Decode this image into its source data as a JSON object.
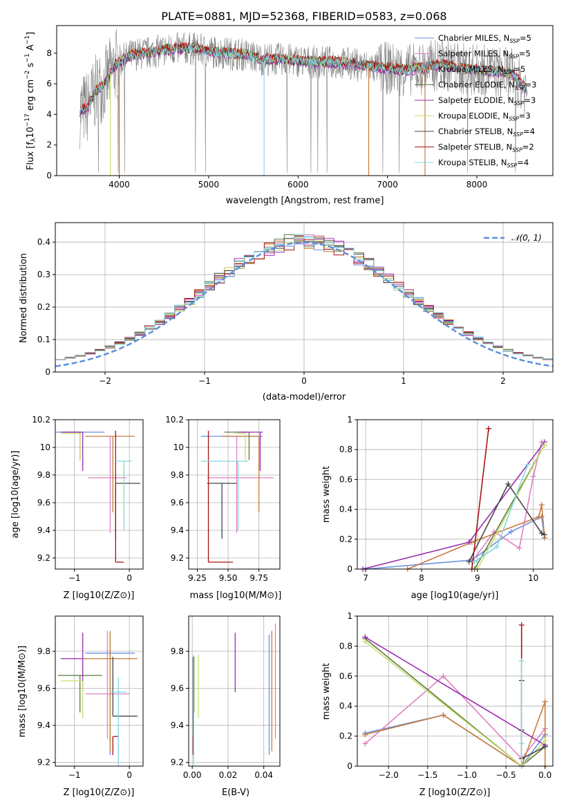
{
  "figure_title": "PLATE=0881, MJD=52368, FIBERID=0583, z=0.068",
  "colors": {
    "chabrier_miles": "#6b8fe0",
    "salpeter_miles": "#e07fc0",
    "kroupa_miles": "#c87a3a",
    "chabrier_elodie": "#5a7a3a",
    "salpeter_elodie": "#9a2ab0",
    "kroupa_elodie": "#c8e070",
    "chabrier_stelib": "#444444",
    "salpeter_stelib": "#aa1111",
    "kroupa_stelib": "#80d8e0",
    "data": "#808080",
    "normal": "#5b8fd9"
  },
  "chart_data": [
    {
      "type": "line",
      "id": "spectrum",
      "xlabel": "wavelength [Angstrom, rest frame]",
      "ylabel": "Flux [f_λ 10^-17 erg cm^-2 s^-1 A^-1]",
      "xlim": [
        3300,
        8850
      ],
      "ylim": [
        0,
        9.8
      ],
      "xticks": [
        4000,
        5000,
        6000,
        7000,
        8000
      ],
      "yticks": [
        0,
        2,
        4,
        6,
        8
      ],
      "legend_position": "top-right",
      "legend": [
        {
          "label": "Chabrier MILES, N_SSP=5",
          "color": "#6b8fe0"
        },
        {
          "label": "Salpeter MILES, N_SSP=5",
          "color": "#e07fc0"
        },
        {
          "label": "Kroupa MILES, N_SSP=5",
          "color": "#c87a3a"
        },
        {
          "label": "Chabrier ELODIE, N_SSP=3",
          "color": "#5a7a3a"
        },
        {
          "label": "Salpeter ELODIE, N_SSP=3",
          "color": "#9a2ab0"
        },
        {
          "label": "Kroupa ELODIE, N_SSP=3",
          "color": "#c8e070"
        },
        {
          "label": "Chabrier STELIB, N_SSP=4",
          "color": "#444444"
        },
        {
          "label": "Salpeter STELIB, N_SSP=2",
          "color": "#aa1111"
        },
        {
          "label": "Kroupa STELIB, N_SSP=4",
          "color": "#80d8e0"
        }
      ],
      "continuum": {
        "x": [
          3550,
          3650,
          3750,
          3850,
          3950,
          4050,
          4150,
          4300,
          4500,
          4700,
          4850,
          5000,
          5200,
          5400,
          5600,
          5800,
          6000,
          6200,
          6400,
          6600,
          6800,
          7000,
          7200,
          7400,
          7600,
          7800,
          8000,
          8200,
          8400,
          8550
        ],
        "y": [
          4.2,
          4.5,
          5.6,
          6.1,
          7.2,
          7.6,
          7.9,
          8.0,
          8.2,
          8.3,
          8.3,
          8.1,
          8.0,
          7.9,
          7.6,
          7.6,
          7.5,
          7.4,
          7.4,
          7.3,
          7.1,
          7.0,
          6.9,
          7.0,
          7.3,
          7.0,
          6.9,
          6.8,
          6.6,
          5.6
        ]
      }
    },
    {
      "type": "line",
      "id": "residuals",
      "xlabel": "(data-model)/error",
      "ylabel": "Normed distribution",
      "xlim": [
        -2.5,
        2.5
      ],
      "ylim": [
        0,
        0.46
      ],
      "xticks": [
        -2,
        -1,
        0,
        1,
        2
      ],
      "yticks": [
        0.0,
        0.1,
        0.2,
        0.3,
        0.4
      ],
      "legend_position": "top-right",
      "normal_label": "𝒩(0, 1)",
      "bin_width": 0.1,
      "bin_start": -2.5
    },
    {
      "type": "scatter",
      "id": "age_vs_Z",
      "xlabel": "Z [log10(Z/Z⊙)]",
      "ylabel": "age  [log10(age/yr)]",
      "xlim": [
        -1.35,
        0.25
      ],
      "ylim": [
        9.12,
        10.2
      ],
      "xticks": [
        -1,
        0
      ],
      "yticks": [
        9.2,
        9.4,
        9.6,
        9.8,
        10.0,
        10.2
      ],
      "points": [
        {
          "model": "chabrier_miles",
          "x": -0.45,
          "xerr": [
            0.9,
            0.0
          ],
          "y": 10.11,
          "yerr": [
            0.0,
            0.0
          ]
        },
        {
          "model": "salpeter_miles",
          "x": -0.35,
          "xerr": [
            0.4,
            0.3
          ],
          "y": 9.78,
          "yerr": [
            0.4,
            0.3
          ]
        },
        {
          "model": "kroupa_miles",
          "x": -0.3,
          "xerr": [
            0.5,
            0.4
          ],
          "y": 10.08,
          "yerr": [
            0.55,
            0.0
          ]
        },
        {
          "model": "chabrier_elodie",
          "x": -0.9,
          "xerr": [
            0.3,
            0.0
          ],
          "y": 10.11,
          "yerr": [
            0.2,
            0.0
          ]
        },
        {
          "model": "salpeter_elodie",
          "x": -0.85,
          "xerr": [
            0.4,
            0.0
          ],
          "y": 10.11,
          "yerr": [
            0.28,
            0.0
          ]
        },
        {
          "model": "kroupa_elodie",
          "x": -0.9,
          "xerr": [
            0.35,
            0.0
          ],
          "y": 10.1,
          "yerr": [
            0.2,
            0.0
          ]
        },
        {
          "model": "chabrier_stelib",
          "x": -0.25,
          "xerr": [
            0.0,
            0.45
          ],
          "y": 9.74,
          "yerr": [
            0.4,
            0.0
          ]
        },
        {
          "model": "salpeter_stelib",
          "x": -0.25,
          "xerr": [
            0.0,
            0.15
          ],
          "y": 9.17,
          "yerr": [
            0.0,
            0.95
          ]
        },
        {
          "model": "kroupa_stelib",
          "x": -0.1,
          "xerr": [
            0.15,
            0.15
          ],
          "y": 9.9,
          "yerr": [
            0.5,
            0.0
          ]
        }
      ]
    },
    {
      "type": "scatter",
      "id": "age_vs_mass",
      "xlabel": "mass [log10(M/M⊙)]",
      "ylabel": "",
      "xlim": [
        9.18,
        9.92
      ],
      "ylim": [
        9.12,
        10.2
      ],
      "xticks": [
        9.25,
        9.5,
        9.75
      ],
      "xtick_labels": [
        "9.25",
        "9.50",
        "9.75"
      ],
      "yticks": [
        9.2,
        9.4,
        9.6,
        9.8,
        10.0,
        10.2
      ],
      "points": [
        {
          "model": "chabrier_miles",
          "x": 9.58,
          "xerr": [
            0.3,
            0.2
          ],
          "y": 10.08,
          "yerr": [
            0.0,
            0.0
          ]
        },
        {
          "model": "salpeter_miles",
          "x": 9.57,
          "xerr": [
            0.24,
            0.3
          ],
          "y": 9.78,
          "yerr": [
            0.4,
            0.3
          ]
        },
        {
          "model": "kroupa_miles",
          "x": 9.75,
          "xerr": [
            0.3,
            0.0
          ],
          "y": 10.08,
          "yerr": [
            0.55,
            0.0
          ]
        },
        {
          "model": "chabrier_elodie",
          "x": 9.67,
          "xerr": [
            0.2,
            0.0
          ],
          "y": 10.11,
          "yerr": [
            0.2,
            0.0
          ]
        },
        {
          "model": "salpeter_elodie",
          "x": 9.76,
          "xerr": [
            0.18,
            0.02
          ],
          "y": 10.11,
          "yerr": [
            0.28,
            0.0
          ]
        },
        {
          "model": "kroupa_elodie",
          "x": 9.64,
          "xerr": [
            0.08,
            0.0
          ],
          "y": 10.1,
          "yerr": [
            0.2,
            0.0
          ]
        },
        {
          "model": "chabrier_stelib",
          "x": 9.45,
          "xerr": [
            0.12,
            0.12
          ],
          "y": 9.74,
          "yerr": [
            0.4,
            0.0
          ]
        },
        {
          "model": "salpeter_stelib",
          "x": 9.34,
          "xerr": [
            0.0,
            0.2
          ],
          "y": 9.17,
          "yerr": [
            0.0,
            0.95
          ]
        },
        {
          "model": "kroupa_stelib",
          "x": 9.58,
          "xerr": [
            0.3,
            0.08
          ],
          "y": 9.9,
          "yerr": [
            0.5,
            0.0
          ]
        }
      ]
    },
    {
      "type": "line",
      "id": "mass_weight_vs_age",
      "xlabel": "age  [log10(age/yr)]",
      "ylabel": "mass weight",
      "xlim": [
        6.85,
        10.35
      ],
      "ylim": [
        0,
        1.0
      ],
      "xticks": [
        7,
        8,
        9,
        10
      ],
      "yticks": [
        0.0,
        0.2,
        0.4,
        0.6,
        0.8,
        1.0
      ],
      "series": [
        {
          "model": "chabrier_miles",
          "x": [
            7.0,
            8.9,
            9.6,
            10.15,
            10.2
          ],
          "y": [
            0.0,
            0.06,
            0.25,
            0.35,
            0.21
          ]
        },
        {
          "model": "salpeter_miles",
          "x": [
            8.9,
            9.3,
            9.75,
            10.0,
            10.15
          ],
          "y": [
            0.05,
            0.25,
            0.14,
            0.62,
            0.85
          ]
        },
        {
          "model": "kroupa_miles",
          "x": [
            7.75,
            8.9,
            10.1,
            10.15,
            10.2
          ],
          "y": [
            0.0,
            0.18,
            0.35,
            0.43,
            0.21
          ]
        },
        {
          "model": "chabrier_elodie",
          "x": [
            8.95,
            10.2
          ],
          "y": [
            0.0,
            0.83
          ]
        },
        {
          "model": "salpeter_elodie",
          "x": [
            6.95,
            8.85,
            10.2
          ],
          "y": [
            0.0,
            0.18,
            0.85
          ]
        },
        {
          "model": "kroupa_elodie",
          "x": [
            9.0,
            10.2
          ],
          "y": [
            0.0,
            0.83
          ]
        },
        {
          "model": "chabrier_stelib",
          "x": [
            8.85,
            9.55,
            10.15,
            10.2
          ],
          "y": [
            0.05,
            0.57,
            0.24,
            0.23
          ]
        },
        {
          "model": "salpeter_stelib",
          "x": [
            8.9,
            9.2
          ],
          "y": [
            0.0,
            0.94
          ]
        },
        {
          "model": "kroupa_stelib",
          "x": [
            8.95,
            9.35,
            9.9
          ],
          "y": [
            0.05,
            0.15,
            0.7
          ]
        }
      ]
    },
    {
      "type": "scatter",
      "id": "mass_vs_Z",
      "xlabel": "Z [log10(Z/Z⊙)]",
      "ylabel": "mass [log10(M/M⊙)]",
      "xlim": [
        -1.35,
        0.25
      ],
      "ylim": [
        9.18,
        9.99
      ],
      "xticks": [
        -1,
        0
      ],
      "yticks": [
        9.2,
        9.4,
        9.6,
        9.8
      ],
      "points": [
        {
          "model": "chabrier_miles",
          "x": -0.35,
          "xerr": [
            0.45,
            0.45
          ],
          "y": 9.79,
          "yerr": [
            0.55,
            0.1
          ]
        },
        {
          "model": "salpeter_miles",
          "x": -0.4,
          "xerr": [
            0.4,
            0.4
          ],
          "y": 9.57,
          "yerr": [
            0.24,
            0.34
          ]
        },
        {
          "model": "kroupa_miles",
          "x": -0.35,
          "xerr": [
            0.5,
            0.5
          ],
          "y": 9.76,
          "yerr": [
            0.5,
            0.15
          ]
        },
        {
          "model": "chabrier_elodie",
          "x": -0.9,
          "xerr": [
            0.4,
            0.4
          ],
          "y": 9.67,
          "yerr": [
            0.2,
            0.0
          ]
        },
        {
          "model": "salpeter_elodie",
          "x": -0.85,
          "xerr": [
            0.4,
            0.0
          ],
          "y": 9.76,
          "yerr": [
            0.18,
            0.14
          ]
        },
        {
          "model": "kroupa_elodie",
          "x": -0.85,
          "xerr": [
            0.4,
            0.0
          ],
          "y": 9.64,
          "yerr": [
            0.2,
            0.0
          ]
        },
        {
          "model": "chabrier_stelib",
          "x": -0.3,
          "xerr": [
            0.0,
            0.45
          ],
          "y": 9.45,
          "yerr": [
            0.0,
            0.32
          ]
        },
        {
          "model": "salpeter_stelib",
          "x": -0.3,
          "xerr": [
            0.0,
            0.1
          ],
          "y": 9.34,
          "yerr": [
            0.1,
            0.0
          ]
        },
        {
          "model": "kroupa_stelib",
          "x": -0.2,
          "xerr": [
            0.15,
            0.15
          ],
          "y": 9.58,
          "yerr": [
            0.4,
            0.08
          ]
        }
      ]
    },
    {
      "type": "scatter",
      "id": "mass_vs_EBV",
      "xlabel": "E(B-V)",
      "ylabel": "",
      "xlim": [
        -0.002,
        0.049
      ],
      "ylim": [
        9.18,
        9.99
      ],
      "xticks": [
        0.0,
        0.02,
        0.04
      ],
      "xtick_labels": [
        "0.00",
        "0.02",
        "0.04"
      ],
      "yticks": [
        9.2,
        9.4,
        9.6,
        9.8
      ],
      "points": [
        {
          "model": "chabrier_miles",
          "x": 0.043,
          "xerr": [
            0,
            0
          ],
          "y": 9.79,
          "yerr": [
            0.55,
            0.1
          ]
        },
        {
          "model": "salpeter_miles",
          "x": 0.0465,
          "xerr": [
            0,
            0
          ],
          "y": 9.57,
          "yerr": [
            0.24,
            0.38
          ]
        },
        {
          "model": "kroupa_miles",
          "x": 0.0445,
          "xerr": [
            0,
            0
          ],
          "y": 9.76,
          "yerr": [
            0.5,
            0.15
          ]
        },
        {
          "model": "chabrier_elodie",
          "x": 0.001,
          "xerr": [
            0,
            0
          ],
          "y": 9.67,
          "yerr": [
            0.2,
            0.1
          ]
        },
        {
          "model": "salpeter_elodie",
          "x": 0.024,
          "xerr": [
            0,
            0
          ],
          "y": 9.76,
          "yerr": [
            0.18,
            0.14
          ]
        },
        {
          "model": "kroupa_elodie",
          "x": 0.0035,
          "xerr": [
            0,
            0
          ],
          "y": 9.64,
          "yerr": [
            0.2,
            0.14
          ]
        },
        {
          "model": "chabrier_stelib",
          "x": 0.0005,
          "xerr": [
            0,
            0
          ],
          "y": 9.45,
          "yerr": [
            0.2,
            0.32
          ]
        },
        {
          "model": "salpeter_stelib",
          "x": 0.0005,
          "xerr": [
            0,
            0
          ],
          "y": 9.34,
          "yerr": [
            0.1,
            0.0
          ]
        },
        {
          "model": "kroupa_stelib",
          "x": 0.0008,
          "xerr": [
            0,
            0
          ],
          "y": 9.58,
          "yerr": [
            0.4,
            0.2
          ]
        }
      ]
    },
    {
      "type": "line",
      "id": "mass_weight_vs_Z",
      "xlabel": "Z [log10(Z/Z⊙)]",
      "ylabel": "mass weight",
      "xlim": [
        -2.4,
        0.1
      ],
      "ylim": [
        0,
        1.0
      ],
      "xticks": [
        -2.0,
        -1.5,
        -1.0,
        -0.5,
        0.0
      ],
      "xtick_labels": [
        "−2.0",
        "−1.5",
        "−1.0",
        "−0.5",
        "0.0"
      ],
      "yticks": [
        0.0,
        0.2,
        0.4,
        0.6,
        0.8,
        1.0
      ],
      "series": [
        {
          "model": "chabrier_miles",
          "x": [
            -2.3,
            -1.3,
            -0.3,
            0.0
          ],
          "y": [
            0.22,
            0.34,
            0.0,
            0.21
          ]
        },
        {
          "model": "salpeter_miles",
          "x": [
            -2.3,
            -1.3,
            -0.3,
            0.0,
            0.0
          ],
          "y": [
            0.15,
            0.6,
            0.05,
            0.25,
            0.14
          ]
        },
        {
          "model": "kroupa_miles",
          "x": [
            -2.3,
            -1.3,
            -0.3,
            0.0,
            0.0
          ],
          "y": [
            0.21,
            0.34,
            0.0,
            0.43,
            0.0
          ]
        },
        {
          "model": "chabrier_elodie",
          "x": [
            -2.3,
            -0.3,
            0.0
          ],
          "y": [
            0.85,
            0.0,
            0.13
          ]
        },
        {
          "model": "salpeter_elodie",
          "x": [
            -2.3,
            0.0
          ],
          "y": [
            0.86,
            0.14
          ]
        },
        {
          "model": "kroupa_elodie",
          "x": [
            -2.3,
            -0.3,
            0.0
          ],
          "y": [
            0.83,
            0.0,
            0.17
          ]
        },
        {
          "model": "chabrier_stelib",
          "x": [
            -0.3,
            -0.3,
            -0.3,
            0.0
          ],
          "y": [
            0.57,
            0.24,
            0.05,
            0.13
          ]
        },
        {
          "model": "salpeter_stelib",
          "x": [
            -0.3,
            -0.3
          ],
          "y": [
            0.94,
            0.0
          ]
        },
        {
          "model": "kroupa_stelib",
          "x": [
            -0.3,
            -0.3,
            -0.3
          ],
          "y": [
            0.7,
            0.15,
            0.0
          ]
        }
      ]
    }
  ]
}
